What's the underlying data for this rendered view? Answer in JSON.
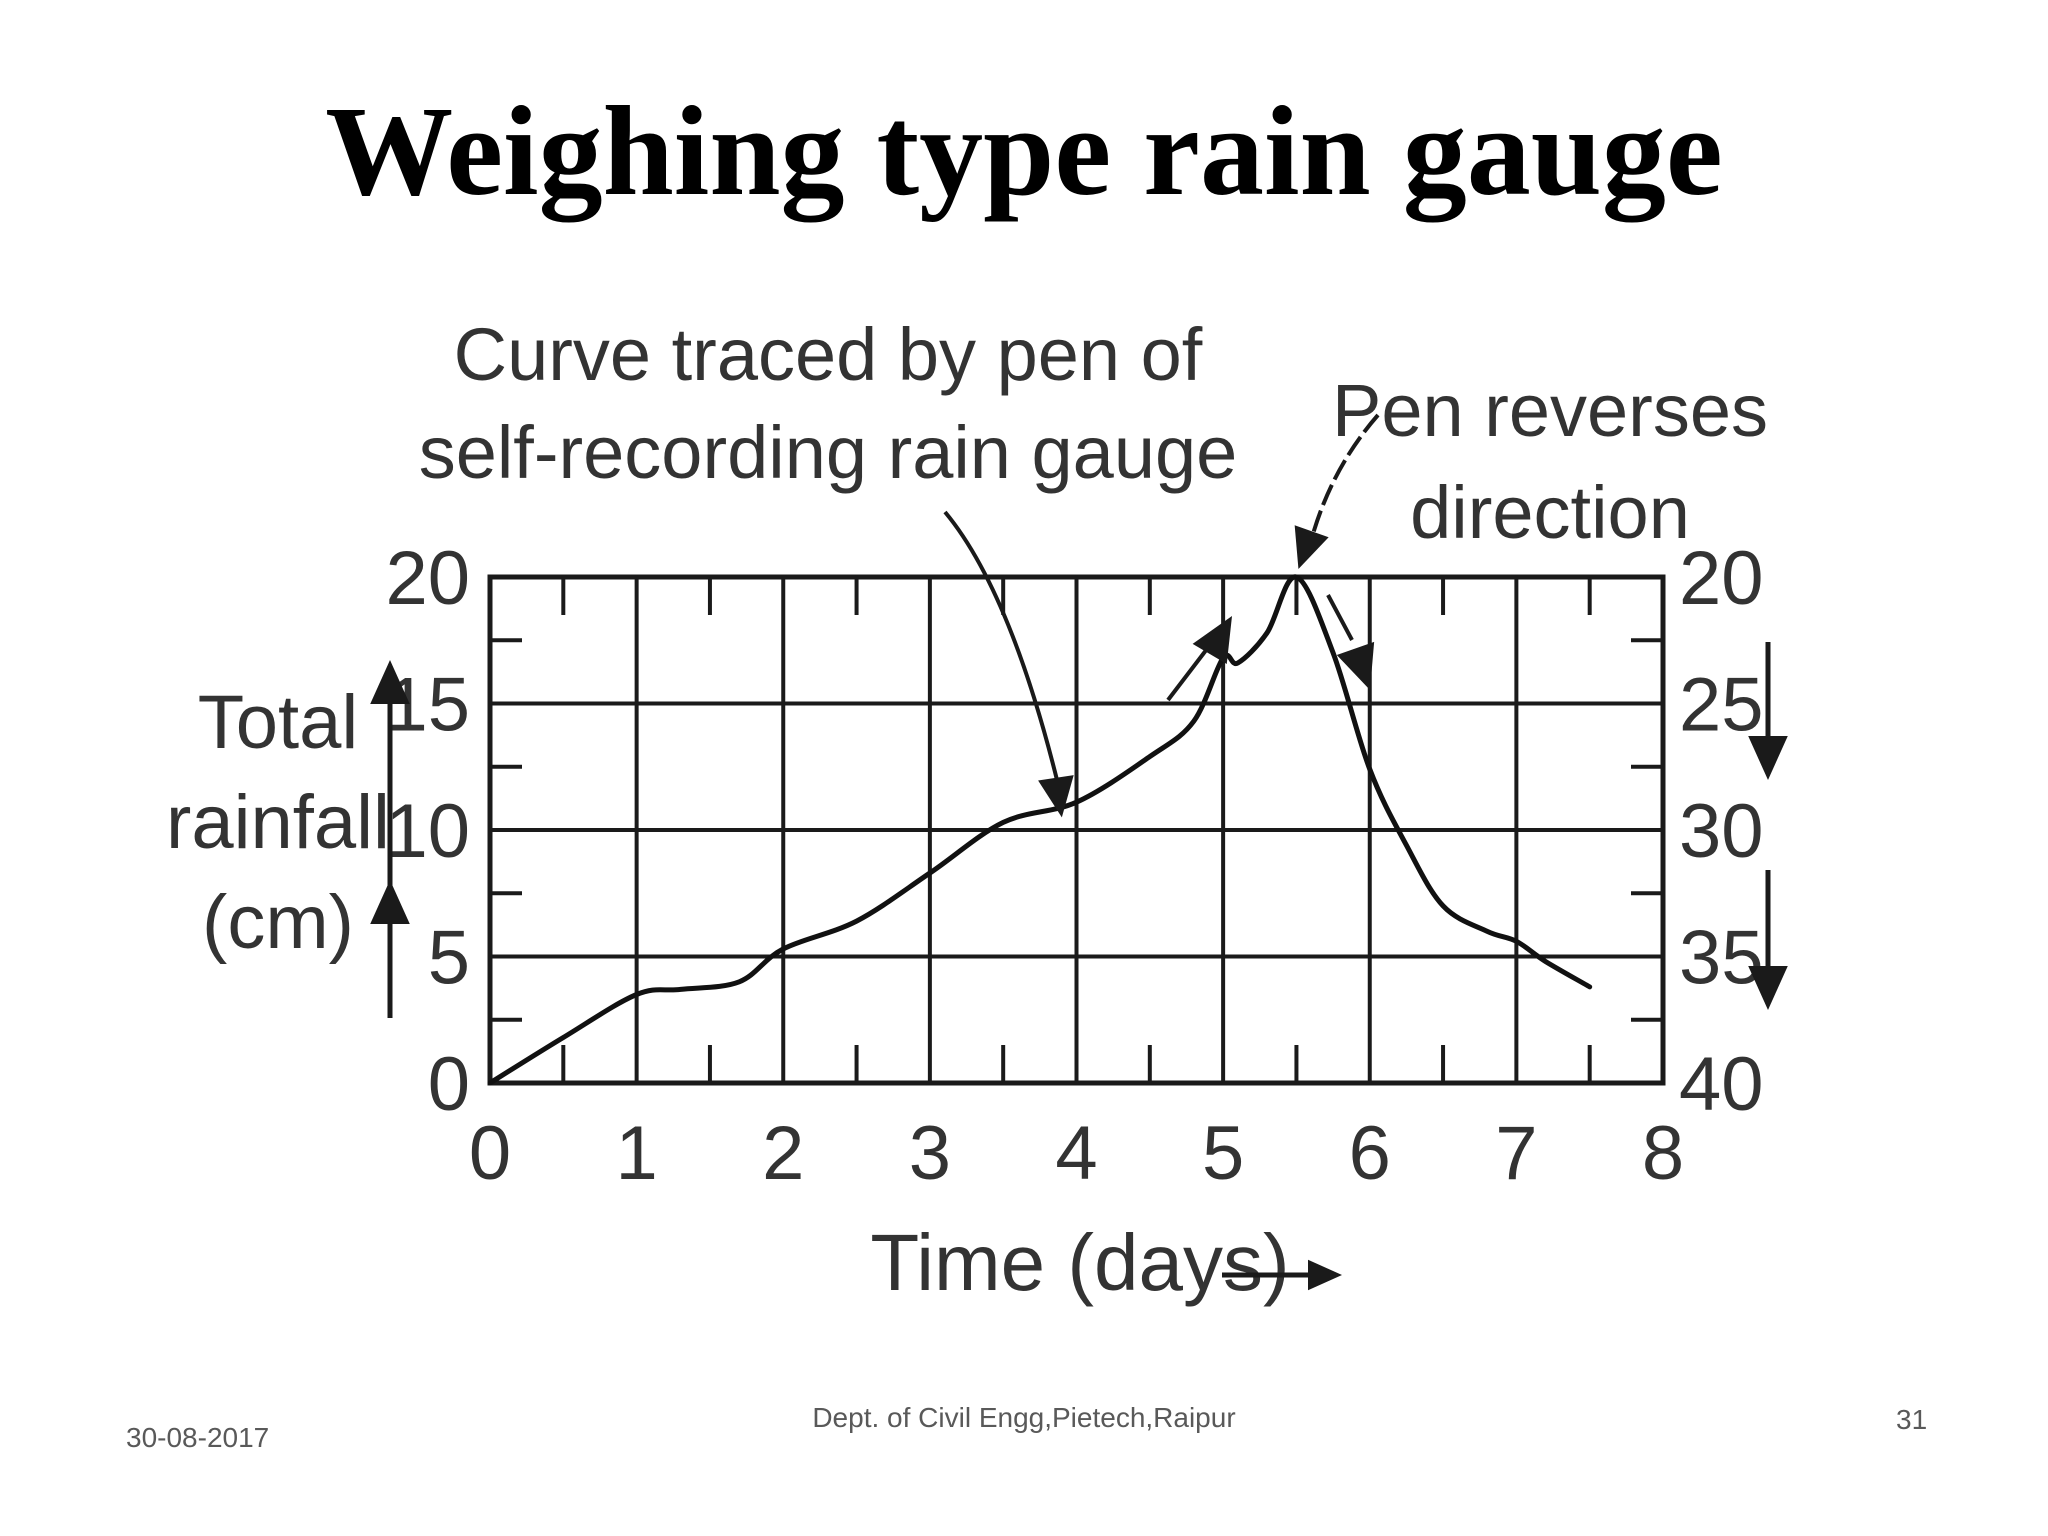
{
  "slide": {
    "title": "Weighing type rain gauge",
    "footer_date": "30-08-2017",
    "footer_dept": "Dept. of Civil Engg,Pietech,Raipur",
    "page_number": "31"
  },
  "chart_data": {
    "type": "line",
    "x_ticks": [
      0,
      1,
      2,
      3,
      4,
      5,
      6,
      7,
      8
    ],
    "xlim": [
      0,
      8
    ],
    "xlabel": "Time (days)",
    "y_left_ticks": [
      0,
      5,
      10,
      15,
      20
    ],
    "y_right_ticks": [
      40,
      35,
      30,
      25,
      20
    ],
    "ylim": [
      0,
      20
    ],
    "ylabel_lines": [
      "Total",
      "rainfall",
      "(cm)"
    ],
    "grid": true,
    "series": [
      {
        "x": [
          0,
          0.5,
          1.0,
          1.3,
          1.7,
          2.0,
          2.5,
          3.0,
          3.5,
          4.0,
          4.5,
          4.8,
          5.0,
          5.1,
          5.3,
          5.5,
          5.75,
          6.0,
          6.25,
          6.5,
          6.8,
          7.0,
          7.2,
          7.5
        ],
        "y": [
          0,
          1.8,
          3.5,
          3.7,
          4.0,
          5.3,
          6.4,
          8.3,
          10.3,
          11.1,
          12.9,
          14.3,
          16.8,
          16.6,
          17.8,
          20.0,
          17.0,
          12.4,
          9.4,
          7.0,
          6.0,
          5.6,
          4.8,
          3.8
        ]
      }
    ],
    "annotations": [
      {
        "text_lines": [
          "Curve traced by pen of",
          "self-recording rain gauge"
        ],
        "points_to": [
          3.9,
          10.5
        ]
      },
      {
        "text_lines": [
          "Pen reverses",
          "direction"
        ],
        "points_to": [
          5.5,
          20
        ]
      }
    ]
  }
}
